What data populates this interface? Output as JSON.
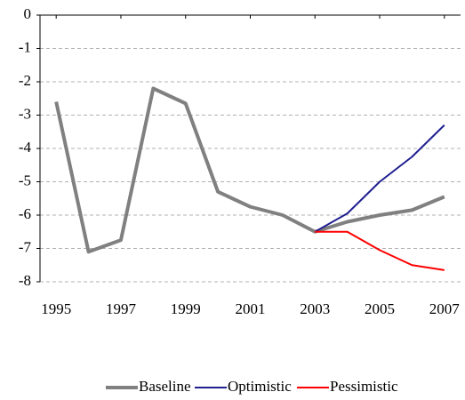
{
  "chart_data": {
    "type": "line",
    "x": [
      1995,
      1996,
      1997,
      1998,
      1999,
      2000,
      2001,
      2002,
      2003,
      2004,
      2005,
      2006,
      2007
    ],
    "series": [
      {
        "name": "Baseline",
        "color": "#808080",
        "values": [
          -2.6,
          -7.1,
          -6.75,
          -2.2,
          -2.65,
          -5.3,
          -5.75,
          -6.0,
          -6.5,
          -6.2,
          -6.0,
          -5.85,
          -5.45
        ]
      },
      {
        "name": "Optimistic",
        "color": "#1f1f8f",
        "values": [
          null,
          null,
          null,
          null,
          null,
          null,
          null,
          null,
          -6.5,
          -5.95,
          -5.0,
          -4.25,
          -3.3
        ]
      },
      {
        "name": "Pessimistic",
        "color": "#ff0000",
        "values": [
          null,
          null,
          null,
          null,
          null,
          null,
          null,
          null,
          -6.5,
          -6.5,
          -7.05,
          -7.5,
          -7.65
        ]
      }
    ],
    "xlim": [
      1994.5,
      2007.5
    ],
    "xticks": [
      1995,
      1997,
      1999,
      2001,
      2003,
      2005,
      2007
    ],
    "ylim": [
      -8,
      0
    ],
    "yticks": [
      0,
      -1,
      -2,
      -3,
      -4,
      -5,
      -6,
      -7,
      -8
    ],
    "grid": true,
    "legend": "bottom"
  }
}
